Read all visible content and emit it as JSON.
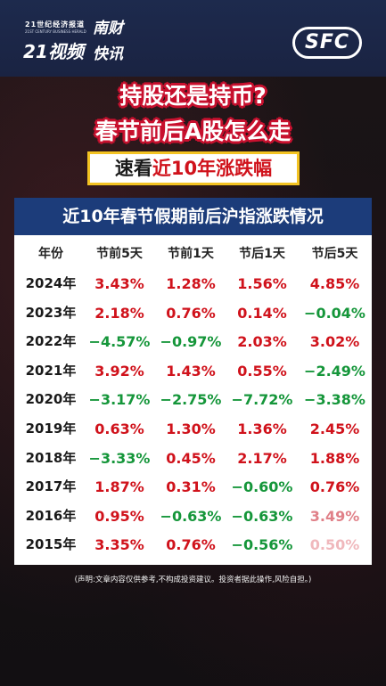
{
  "brand": {
    "line1": "21世纪经济报道",
    "line2": "21ST CENTURY BUSINESS HERALD",
    "video": "21视频",
    "nancai": "南财",
    "kuaixun": "快讯",
    "sfc": "SFC"
  },
  "headline": {
    "line1": "持股还是持币?",
    "line2": "春节前后A股怎么走"
  },
  "quick_look": {
    "prefix": "速看",
    "highlight": "近10年涨跌幅"
  },
  "table": {
    "title": "近10年春节假期前后沪指涨跌情况",
    "headers": [
      "年份",
      "节前5天",
      "节前1天",
      "节后1天",
      "节后5天"
    ],
    "rows": [
      {
        "year": "2024年",
        "cells": [
          "3.43%",
          "1.28%",
          "1.56%",
          "4.85%"
        ],
        "colors": [
          "#d0121b",
          "#d0121b",
          "#d0121b",
          "#d0121b"
        ]
      },
      {
        "year": "2023年",
        "cells": [
          "2.18%",
          "0.76%",
          "0.14%",
          "−0.04%"
        ],
        "colors": [
          "#d0121b",
          "#d0121b",
          "#d0121b",
          "#15963a"
        ]
      },
      {
        "year": "2022年",
        "cells": [
          "−4.57%",
          "−0.97%",
          "2.03%",
          "3.02%"
        ],
        "colors": [
          "#15963a",
          "#15963a",
          "#d0121b",
          "#d0121b"
        ]
      },
      {
        "year": "2021年",
        "cells": [
          "3.92%",
          "1.43%",
          "0.55%",
          "−2.49%"
        ],
        "colors": [
          "#d0121b",
          "#d0121b",
          "#d0121b",
          "#15963a"
        ]
      },
      {
        "year": "2020年",
        "cells": [
          "−3.17%",
          "−2.75%",
          "−7.72%",
          "−3.38%"
        ],
        "colors": [
          "#15963a",
          "#15963a",
          "#15963a",
          "#15963a"
        ]
      },
      {
        "year": "2019年",
        "cells": [
          "0.63%",
          "1.30%",
          "1.36%",
          "2.45%"
        ],
        "colors": [
          "#d0121b",
          "#d0121b",
          "#d0121b",
          "#d0121b"
        ]
      },
      {
        "year": "2018年",
        "cells": [
          "−3.33%",
          "0.45%",
          "2.17%",
          "1.88%"
        ],
        "colors": [
          "#15963a",
          "#d0121b",
          "#d0121b",
          "#d0121b"
        ]
      },
      {
        "year": "2017年",
        "cells": [
          "1.87%",
          "0.31%",
          "−0.60%",
          "0.76%"
        ],
        "colors": [
          "#d0121b",
          "#d0121b",
          "#15963a",
          "#d0121b"
        ]
      },
      {
        "year": "2016年",
        "cells": [
          "0.95%",
          "−0.63%",
          "−0.63%",
          "3.49%"
        ],
        "colors": [
          "#d0121b",
          "#15963a",
          "#15963a",
          "#e08088"
        ]
      },
      {
        "year": "2015年",
        "cells": [
          "3.35%",
          "0.76%",
          "−0.56%",
          "0.50%"
        ],
        "colors": [
          "#d0121b",
          "#d0121b",
          "#15963a",
          "#f0b8bc"
        ]
      }
    ]
  },
  "footnote": "(声明:文章内容仅供参考,不构成投资建议。投资者据此操作,风险自担。)"
}
